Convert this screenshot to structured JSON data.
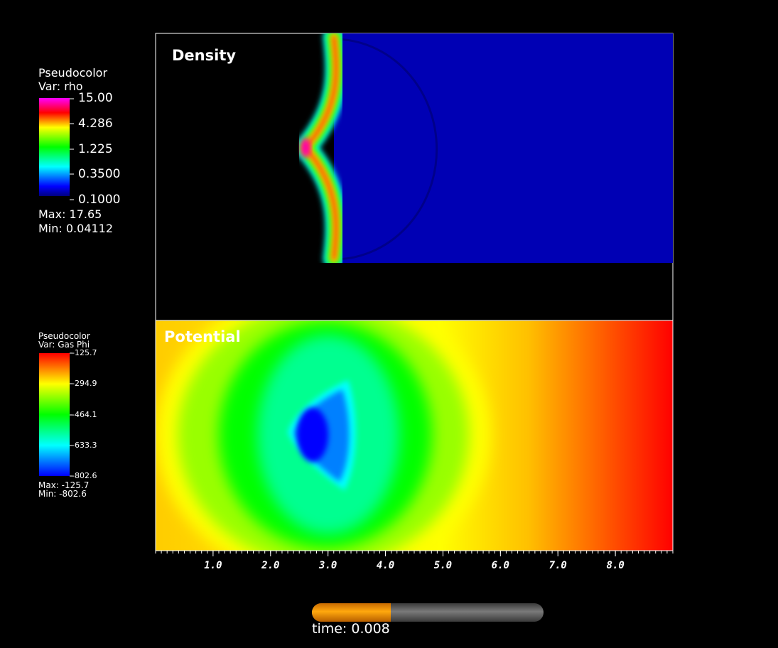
{
  "chart_data": [
    {
      "type": "heatmap",
      "title": "Density",
      "variable": "rho",
      "colorbar": {
        "header": "Pseudocolor",
        "var_label": "Var: rho",
        "ticks": [
          "15.00",
          "4.286",
          "1.225",
          "0.3500",
          "0.1000"
        ],
        "range": [
          0.1,
          15.0
        ],
        "scale": "log",
        "colormap": [
          "#0000ff",
          "#00ffff",
          "#00ff00",
          "#ffff00",
          "#ff0000",
          "#ff00ff"
        ],
        "max_label": "Max:  17.65",
        "min_label": "Min:  0.04112",
        "max": 17.65,
        "min": 0.04112
      },
      "background_color": "#0000b4",
      "front_x": 3.0,
      "xlim": [
        0.0,
        9.0
      ],
      "ylim": [
        0.0,
        4.0
      ]
    },
    {
      "type": "heatmap",
      "title": "Potential",
      "variable": "Gas Phi",
      "colorbar": {
        "header": "Pseudocolor",
        "var_label": "Var: Gas Phi",
        "ticks": [
          "-125.7",
          "-294.9",
          "-464.1",
          "-633.3",
          "-802.6"
        ],
        "range": [
          -802.6,
          -125.7
        ],
        "scale": "linear",
        "colormap": [
          "#0000ff",
          "#00ffff",
          "#00ff00",
          "#ffff00",
          "#ff0000"
        ],
        "max_label": "Max: -125.7",
        "min_label": "Min: -802.6",
        "max": -125.7,
        "min": -802.6
      },
      "minimum_location_x": 2.7,
      "xlim": [
        0.0,
        9.0
      ]
    }
  ],
  "x_axis": {
    "ticks": [
      "1.0",
      "2.0",
      "3.0",
      "4.0",
      "5.0",
      "6.0",
      "7.0",
      "8.0"
    ],
    "tick_values": [
      1,
      2,
      3,
      4,
      5,
      6,
      7,
      8
    ],
    "range": [
      0.0,
      9.0
    ]
  },
  "time_slider": {
    "label": "time: 0.008",
    "progress": 0.34
  }
}
